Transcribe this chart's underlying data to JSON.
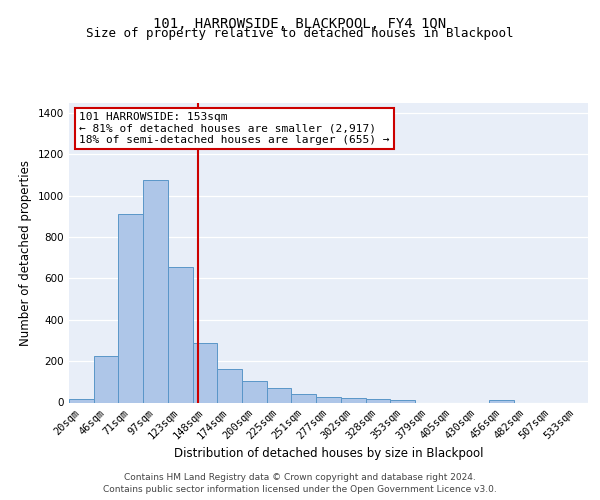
{
  "title": "101, HARROWSIDE, BLACKPOOL, FY4 1QN",
  "subtitle": "Size of property relative to detached houses in Blackpool",
  "xlabel": "Distribution of detached houses by size in Blackpool",
  "ylabel": "Number of detached properties",
  "categories": [
    "20sqm",
    "46sqm",
    "71sqm",
    "97sqm",
    "123sqm",
    "148sqm",
    "174sqm",
    "200sqm",
    "225sqm",
    "251sqm",
    "277sqm",
    "302sqm",
    "328sqm",
    "353sqm",
    "379sqm",
    "405sqm",
    "430sqm",
    "456sqm",
    "482sqm",
    "507sqm",
    "533sqm"
  ],
  "values": [
    18,
    225,
    910,
    1075,
    655,
    290,
    160,
    105,
    70,
    40,
    25,
    22,
    18,
    14,
    0,
    0,
    0,
    12,
    0,
    0,
    0
  ],
  "bar_color": "#aec6e8",
  "bar_edge_color": "#5a96c8",
  "vline_color": "#cc0000",
  "vline_x": 4.7,
  "annotation_text": "101 HARROWSIDE: 153sqm\n← 81% of detached houses are smaller (2,917)\n18% of semi-detached houses are larger (655) →",
  "annotation_box_color": "#ffffff",
  "annotation_box_edge_color": "#cc0000",
  "ylim": [
    0,
    1450
  ],
  "yticks": [
    0,
    200,
    400,
    600,
    800,
    1000,
    1200,
    1400
  ],
  "background_color": "#e8eef8",
  "footer_line1": "Contains HM Land Registry data © Crown copyright and database right 2024.",
  "footer_line2": "Contains public sector information licensed under the Open Government Licence v3.0.",
  "title_fontsize": 10,
  "subtitle_fontsize": 9,
  "axis_label_fontsize": 8.5,
  "tick_fontsize": 7.5,
  "annotation_fontsize": 8,
  "footer_fontsize": 6.5
}
